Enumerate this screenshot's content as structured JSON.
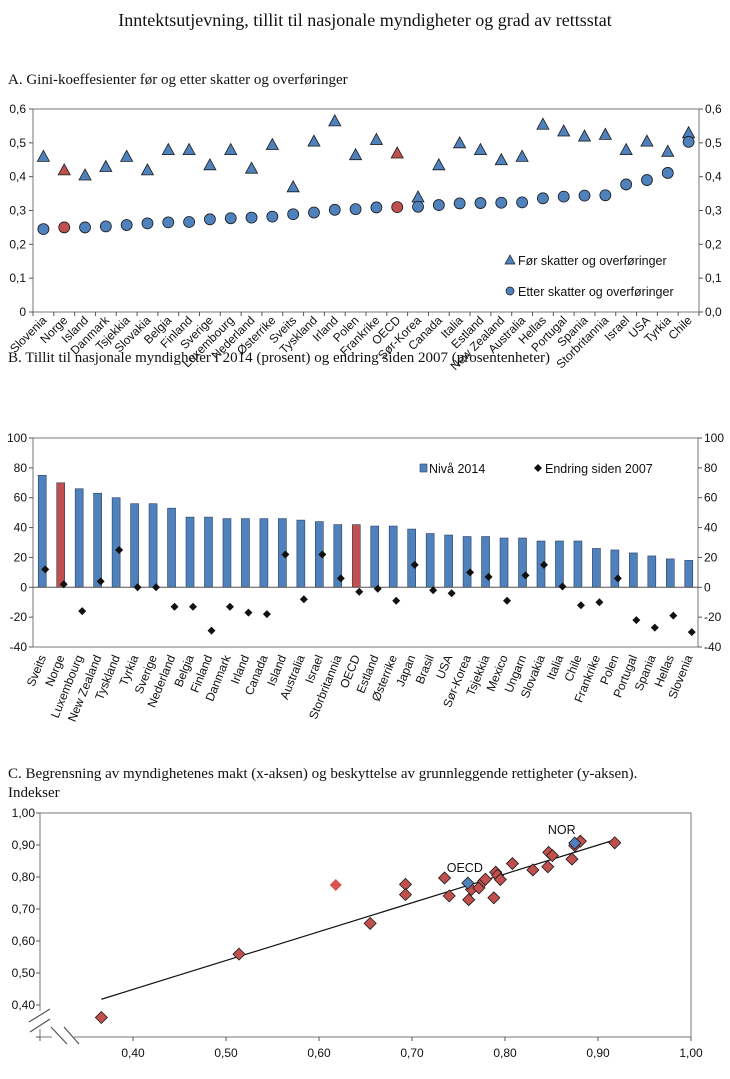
{
  "title": "Inntektsutjevning, tillit til nasjonale myndigheter og grad av rettsstat",
  "colors": {
    "blue": "#4f81bd",
    "red": "#c0504d",
    "red_light": "#d9534f",
    "outline": "#1a1a1a"
  },
  "chart_data": [
    {
      "type": "scatter",
      "title": "A.  Gini-koeffesienter før og etter skatter og overføringer",
      "ylim": [
        0,
        0.6
      ],
      "left_ticks": [
        "0",
        "0,1",
        "0,2",
        "0,3",
        "0,4",
        "0,5",
        "0,6"
      ],
      "right_ticks": [
        "0,0",
        "0,1",
        "0,2",
        "0,3",
        "0,4",
        "0,5",
        "0,6"
      ],
      "legend_placement": "bottom-right",
      "highlight": [
        "Norge",
        "OECD"
      ],
      "categories": [
        "Slovenia",
        "Norge",
        "Island",
        "Danmark",
        "Tsjekkia",
        "Slovakia",
        "Belgia",
        "Finland",
        "Sverige",
        "Luxembourg",
        "Nederland",
        "Østerrike",
        "Sveits",
        "Tyskland",
        "Irland",
        "Polen",
        "Frankrike",
        "OECD",
        "Sør-Korea",
        "Canada",
        "Italia",
        "Estland",
        "New Zealand",
        "Australia",
        "Hellas",
        "Portugal",
        "Spania",
        "Storbritannia",
        "Israel",
        "USA",
        "Tyrkia",
        "Chile"
      ],
      "series": [
        {
          "name": "Før skatter og overføringer",
          "marker": "triangle",
          "values": [
            0.46,
            0.42,
            0.405,
            0.43,
            0.46,
            0.42,
            0.48,
            0.48,
            0.435,
            0.48,
            0.425,
            0.495,
            0.37,
            0.505,
            0.565,
            0.465,
            0.51,
            0.47,
            0.34,
            0.435,
            0.5,
            0.48,
            0.45,
            0.46,
            0.555,
            0.535,
            0.52,
            0.525,
            0.48,
            0.505,
            0.475,
            0.53
          ]
        },
        {
          "name": "Etter skatter og overføringer",
          "marker": "circle",
          "values": [
            0.245,
            0.25,
            0.25,
            0.253,
            0.257,
            0.262,
            0.265,
            0.266,
            0.274,
            0.277,
            0.279,
            0.282,
            0.289,
            0.294,
            0.302,
            0.304,
            0.309,
            0.31,
            0.311,
            0.316,
            0.321,
            0.322,
            0.323,
            0.324,
            0.336,
            0.341,
            0.344,
            0.345,
            0.377,
            0.39,
            0.411,
            0.503
          ]
        }
      ]
    },
    {
      "type": "bar",
      "title": "B.  Tillit til nasjonale myndigheter i 2014 (prosent) og endring siden 2007 (prosentenheter)",
      "ylim": [
        -40,
        100
      ],
      "left_ticks": [
        "-40",
        "-20",
        "0",
        "20",
        "40",
        "60",
        "80",
        "100"
      ],
      "right_ticks": [
        "-40",
        "-20",
        "0",
        "20",
        "40",
        "60",
        "80",
        "100"
      ],
      "legend_placement": "top-right",
      "highlight": [
        "Norge",
        "OECD"
      ],
      "categories": [
        "Sveits",
        "Norge",
        "Luxembourg",
        "New Zealand",
        "Tyskland",
        "Tyrkia",
        "Sverige",
        "Nederland",
        "Belgia",
        "Finland",
        "Danmark",
        "Irland",
        "Canada",
        "Island",
        "Australia",
        "Israel",
        "Storbritannia",
        "OECD",
        "Estland",
        "Østerrike",
        "Japan",
        "Brasil",
        "USA",
        "Sør-Korea",
        "Tsjekkia",
        "Mexico",
        "Ungarn",
        "Slovakia",
        "Italia",
        "Chile",
        "Frankrike",
        "Polen",
        "Portugal",
        "Spania",
        "Hellas",
        "Slovenia"
      ],
      "series": [
        {
          "name": "Nivå 2014",
          "marker": "bar",
          "values": [
            75,
            70,
            66,
            63,
            60,
            56,
            56,
            53,
            47,
            47,
            46,
            46,
            46,
            46,
            45,
            44,
            42,
            42,
            41,
            41,
            39,
            36,
            35,
            34,
            34,
            33,
            33,
            31,
            31,
            31,
            26,
            25,
            23,
            21,
            19,
            18
          ]
        },
        {
          "name": "Endring siden 2007",
          "marker": "diamond",
          "values": [
            12,
            2,
            -16,
            4,
            25,
            0,
            0,
            -13,
            -13,
            -29,
            -13,
            -17,
            -18,
            22,
            -8,
            22,
            6,
            -3,
            -1,
            -9,
            15,
            -2,
            -4,
            10,
            7,
            -9,
            8,
            15,
            0.5,
            -12,
            -10,
            6,
            -22,
            -27,
            -19,
            -30
          ]
        }
      ]
    },
    {
      "type": "scatter",
      "title": "C.  Begrensning av myndighetenes makt (x-aksen) og beskyttelse av grunnleggende rettigheter (y-aksen).",
      "subtitle": "Indekser",
      "xlim": [
        0.3,
        1.0
      ],
      "ylim": [
        0.3,
        1.0
      ],
      "axis_break": true,
      "x_ticks": [
        "0,40",
        "0,50",
        "0,60",
        "0,70",
        "0,80",
        "0,90",
        "1,00"
      ],
      "y_ticks": [
        "0,40",
        "0,50",
        "0,60",
        "0,70",
        "0,80",
        "0,90",
        "1,00"
      ],
      "annotations": [
        {
          "label": "NOR",
          "x": 0.875,
          "y": 0.906
        },
        {
          "label": "OECD",
          "x": 0.76,
          "y": 0.781
        }
      ],
      "trendline": {
        "x": [
          0.366,
          0.918
        ],
        "y": [
          0.418,
          0.916
        ]
      },
      "points": [
        {
          "x": 0.366,
          "y": 0.361
        },
        {
          "x": 0.514,
          "y": 0.559
        },
        {
          "x": 0.618,
          "y": 0.775,
          "light": true
        },
        {
          "x": 0.655,
          "y": 0.655
        },
        {
          "x": 0.693,
          "y": 0.777
        },
        {
          "x": 0.693,
          "y": 0.745
        },
        {
          "x": 0.735,
          "y": 0.797
        },
        {
          "x": 0.74,
          "y": 0.741
        },
        {
          "x": 0.761,
          "y": 0.729
        },
        {
          "x": 0.764,
          "y": 0.761
        },
        {
          "x": 0.772,
          "y": 0.766
        },
        {
          "x": 0.777,
          "y": 0.787
        },
        {
          "x": 0.779,
          "y": 0.793
        },
        {
          "x": 0.788,
          "y": 0.735
        },
        {
          "x": 0.79,
          "y": 0.815
        },
        {
          "x": 0.792,
          "y": 0.805
        },
        {
          "x": 0.795,
          "y": 0.792
        },
        {
          "x": 0.808,
          "y": 0.842
        },
        {
          "x": 0.83,
          "y": 0.822
        },
        {
          "x": 0.846,
          "y": 0.832
        },
        {
          "x": 0.847,
          "y": 0.877
        },
        {
          "x": 0.851,
          "y": 0.867
        },
        {
          "x": 0.872,
          "y": 0.856
        },
        {
          "x": 0.875,
          "y": 0.898
        },
        {
          "x": 0.881,
          "y": 0.912
        },
        {
          "x": 0.918,
          "y": 0.907
        },
        {
          "x": 0.76,
          "y": 0.781,
          "label": "OECD",
          "blue": true
        },
        {
          "x": 0.875,
          "y": 0.906,
          "label": "NOR",
          "blue": true
        }
      ]
    }
  ]
}
